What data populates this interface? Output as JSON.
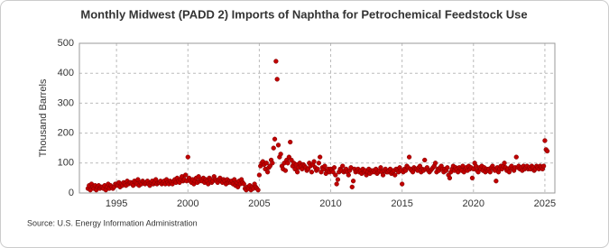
{
  "chart_data": {
    "type": "scatter",
    "title": "Monthly Midwest (PADD 2) Imports of Naphtha for Petrochemical Feedstock Use",
    "y_label": "Thousand Barrels",
    "source": "Source: U.S. Energy Information Administration",
    "color": "#c00000",
    "grid": true,
    "xlim": [
      1992.4,
      2025.7
    ],
    "xticks": [
      1995,
      2000,
      2005,
      2010,
      2015,
      2020,
      2025
    ],
    "ylim": [
      0,
      500
    ],
    "yticks": [
      0,
      100,
      200,
      300,
      400,
      500
    ],
    "x": [
      1993,
      1993.083,
      1993.167,
      1993.25,
      1993.333,
      1993.417,
      1993.5,
      1993.583,
      1993.667,
      1993.75,
      1993.833,
      1993.917,
      1994,
      1994.083,
      1994.167,
      1994.25,
      1994.333,
      1994.417,
      1994.5,
      1994.583,
      1994.667,
      1994.75,
      1994.833,
      1994.917,
      1995,
      1995.083,
      1995.167,
      1995.25,
      1995.333,
      1995.417,
      1995.5,
      1995.583,
      1995.667,
      1995.75,
      1995.833,
      1995.917,
      1996,
      1996.083,
      1996.167,
      1996.25,
      1996.333,
      1996.417,
      1996.5,
      1996.583,
      1996.667,
      1996.75,
      1996.833,
      1996.917,
      1997,
      1997.083,
      1997.167,
      1997.25,
      1997.333,
      1997.417,
      1997.5,
      1997.583,
      1997.667,
      1997.75,
      1997.833,
      1997.917,
      1998,
      1998.083,
      1998.167,
      1998.25,
      1998.333,
      1998.417,
      1998.5,
      1998.583,
      1998.667,
      1998.75,
      1998.833,
      1998.917,
      1999,
      1999.083,
      1999.167,
      1999.25,
      1999.333,
      1999.417,
      1999.5,
      1999.583,
      1999.667,
      1999.75,
      1999.833,
      1999.917,
      2000,
      2000.083,
      2000.167,
      2000.25,
      2000.333,
      2000.417,
      2000.5,
      2000.583,
      2000.667,
      2000.75,
      2000.833,
      2000.917,
      2001,
      2001.083,
      2001.167,
      2001.25,
      2001.333,
      2001.417,
      2001.5,
      2001.583,
      2001.667,
      2001.75,
      2001.833,
      2001.917,
      2002,
      2002.083,
      2002.167,
      2002.25,
      2002.333,
      2002.417,
      2002.5,
      2002.583,
      2002.667,
      2002.75,
      2002.833,
      2002.917,
      2003,
      2003.083,
      2003.167,
      2003.25,
      2003.333,
      2003.417,
      2003.5,
      2003.583,
      2003.667,
      2003.75,
      2003.833,
      2003.917,
      2004,
      2004.083,
      2004.167,
      2004.25,
      2004.333,
      2004.417,
      2004.5,
      2004.583,
      2004.667,
      2004.75,
      2004.833,
      2004.917,
      2005,
      2005.083,
      2005.167,
      2005.25,
      2005.333,
      2005.417,
      2005.5,
      2005.583,
      2005.667,
      2005.75,
      2005.833,
      2005.917,
      2006,
      2006.083,
      2006.167,
      2006.25,
      2006.333,
      2006.417,
      2006.5,
      2006.583,
      2006.667,
      2006.75,
      2006.833,
      2006.917,
      2007,
      2007.083,
      2007.167,
      2007.25,
      2007.333,
      2007.417,
      2007.5,
      2007.583,
      2007.667,
      2007.75,
      2007.833,
      2007.917,
      2008,
      2008.083,
      2008.167,
      2008.25,
      2008.333,
      2008.417,
      2008.5,
      2008.583,
      2008.667,
      2008.75,
      2008.833,
      2008.917,
      2009,
      2009.083,
      2009.167,
      2009.25,
      2009.333,
      2009.417,
      2009.5,
      2009.583,
      2009.667,
      2009.75,
      2009.833,
      2009.917,
      2010,
      2010.083,
      2010.167,
      2010.25,
      2010.333,
      2010.417,
      2010.5,
      2010.583,
      2010.667,
      2010.75,
      2010.833,
      2010.917,
      2011,
      2011.083,
      2011.167,
      2011.25,
      2011.333,
      2011.417,
      2011.5,
      2011.583,
      2011.667,
      2011.75,
      2011.833,
      2011.917,
      2012,
      2012.083,
      2012.167,
      2012.25,
      2012.333,
      2012.417,
      2012.5,
      2012.583,
      2012.667,
      2012.75,
      2012.833,
      2012.917,
      2013,
      2013.083,
      2013.167,
      2013.25,
      2013.333,
      2013.417,
      2013.5,
      2013.583,
      2013.667,
      2013.75,
      2013.833,
      2013.917,
      2014,
      2014.083,
      2014.167,
      2014.25,
      2014.333,
      2014.417,
      2014.5,
      2014.583,
      2014.667,
      2014.75,
      2014.833,
      2014.917,
      2015,
      2015.083,
      2015.167,
      2015.25,
      2015.333,
      2015.417,
      2015.5,
      2015.583,
      2015.667,
      2015.75,
      2015.833,
      2015.917,
      2016,
      2016.083,
      2016.167,
      2016.25,
      2016.333,
      2016.417,
      2016.5,
      2016.583,
      2016.667,
      2016.75,
      2016.833,
      2016.917,
      2017,
      2017.083,
      2017.167,
      2017.25,
      2017.333,
      2017.417,
      2017.5,
      2017.583,
      2017.667,
      2017.75,
      2017.833,
      2017.917,
      2018,
      2018.083,
      2018.167,
      2018.25,
      2018.333,
      2018.417,
      2018.5,
      2018.583,
      2018.667,
      2018.75,
      2018.833,
      2018.917,
      2019,
      2019.083,
      2019.167,
      2019.25,
      2019.333,
      2019.417,
      2019.5,
      2019.583,
      2019.667,
      2019.75,
      2019.833,
      2019.917,
      2020,
      2020.083,
      2020.167,
      2020.25,
      2020.333,
      2020.417,
      2020.5,
      2020.583,
      2020.667,
      2020.75,
      2020.833,
      2020.917,
      2021,
      2021.083,
      2021.167,
      2021.25,
      2021.333,
      2021.417,
      2021.5,
      2021.583,
      2021.667,
      2021.75,
      2021.833,
      2021.917,
      2022,
      2022.083,
      2022.167,
      2022.25,
      2022.333,
      2022.417,
      2022.5,
      2022.583,
      2022.667,
      2022.75,
      2022.833,
      2022.917,
      2023,
      2023.083,
      2023.167,
      2023.25,
      2023.333,
      2023.417,
      2023.5,
      2023.583,
      2023.667,
      2023.75,
      2023.833,
      2023.917,
      2024,
      2024.083,
      2024.167,
      2024.25,
      2024.333,
      2024.417,
      2024.5,
      2024.583,
      2024.667,
      2024.75,
      2024.833,
      2024.917,
      2025,
      2025.083,
      2025.167
    ],
    "values": [
      15,
      25,
      10,
      30,
      20,
      15,
      25,
      10,
      20,
      25,
      15,
      20,
      20,
      15,
      25,
      10,
      20,
      30,
      15,
      25,
      20,
      15,
      20,
      30,
      30,
      25,
      35,
      20,
      30,
      25,
      35,
      30,
      25,
      40,
      30,
      35,
      35,
      30,
      25,
      40,
      35,
      30,
      45,
      25,
      35,
      30,
      40,
      35,
      30,
      35,
      40,
      30,
      25,
      35,
      40,
      30,
      35,
      45,
      30,
      35,
      35,
      40,
      30,
      35,
      40,
      30,
      45,
      35,
      30,
      40,
      35,
      30,
      40,
      45,
      35,
      50,
      40,
      35,
      45,
      55,
      40,
      45,
      60,
      40,
      120,
      50,
      40,
      35,
      45,
      30,
      40,
      50,
      35,
      55,
      40,
      45,
      40,
      50,
      35,
      45,
      40,
      30,
      50,
      45,
      35,
      40,
      55,
      45,
      40,
      35,
      45,
      50,
      40,
      35,
      45,
      40,
      30,
      45,
      35,
      40,
      35,
      40,
      30,
      45,
      25,
      35,
      20,
      40,
      30,
      45,
      35,
      30,
      15,
      10,
      20,
      15,
      25,
      10,
      20,
      15,
      30,
      20,
      15,
      10,
      60,
      90,
      100,
      105,
      95,
      80,
      100,
      70,
      85,
      90,
      110,
      100,
      150,
      180,
      440,
      380,
      160,
      120,
      130,
      90,
      80,
      100,
      75,
      110,
      100,
      120,
      170,
      110,
      90,
      100,
      80,
      95,
      70,
      85,
      100,
      90,
      80,
      95,
      90,
      85,
      75,
      80,
      100,
      90,
      70,
      95,
      105,
      85,
      75,
      80,
      100,
      120,
      70,
      85,
      80,
      90,
      65,
      75,
      80,
      70,
      80,
      75,
      70,
      85,
      60,
      30,
      45,
      70,
      80,
      75,
      90,
      70,
      75,
      80,
      70,
      60,
      75,
      85,
      20,
      40,
      80,
      70,
      75,
      80,
      70,
      75,
      65,
      80,
      70,
      75,
      60,
      70,
      80,
      65,
      75,
      70,
      75,
      70,
      80,
      65,
      70,
      75,
      85,
      70,
      60,
      75,
      80,
      70,
      70,
      75,
      80,
      65,
      70,
      75,
      60,
      80,
      75,
      70,
      85,
      75,
      30,
      70,
      80,
      75,
      90,
      85,
      120,
      80,
      75,
      70,
      85,
      80,
      80,
      75,
      85,
      90,
      70,
      80,
      75,
      110,
      80,
      85,
      75,
      70,
      75,
      80,
      85,
      90,
      100,
      70,
      80,
      75,
      85,
      90,
      80,
      70,
      80,
      75,
      85,
      60,
      50,
      70,
      80,
      90,
      75,
      85,
      80,
      70,
      85,
      80,
      75,
      90,
      70,
      80,
      85,
      75,
      90,
      80,
      85,
      50,
      80,
      100,
      90,
      75,
      70,
      85,
      80,
      90,
      75,
      85,
      70,
      80,
      75,
      80,
      70,
      85,
      90,
      80,
      75,
      40,
      85,
      70,
      80,
      90,
      80,
      90,
      100,
      85,
      75,
      80,
      70,
      85,
      90,
      80,
      75,
      85,
      120,
      85,
      90,
      80,
      85,
      75,
      90,
      80,
      85,
      90,
      80,
      85,
      80,
      90,
      85,
      75,
      80,
      90,
      85,
      80,
      90,
      85,
      80,
      90,
      175,
      145,
      140
    ]
  }
}
